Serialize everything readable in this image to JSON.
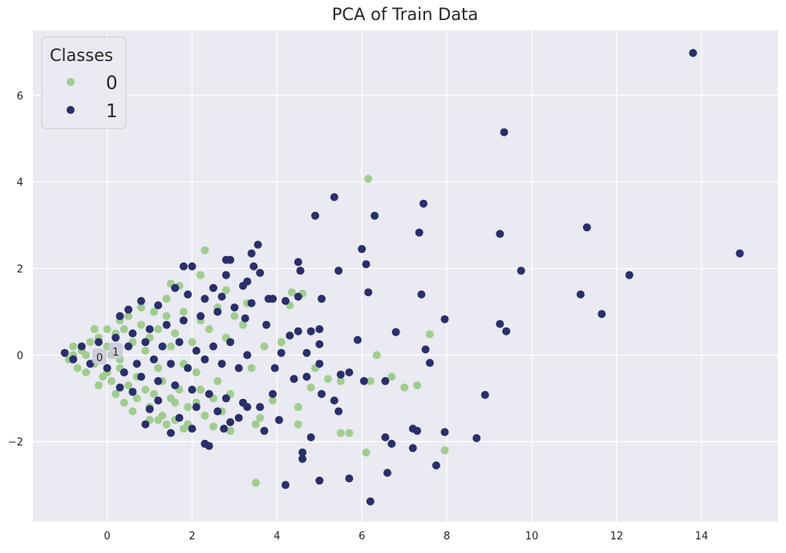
{
  "chart_data": {
    "type": "scatter",
    "title": "PCA of Train Data",
    "xlabel": "",
    "ylabel": "",
    "xlim": [
      -1.75,
      15.8
    ],
    "ylim": [
      -3.85,
      7.5
    ],
    "x_ticks": [
      0,
      2,
      4,
      6,
      8,
      10,
      12,
      14
    ],
    "x_tick_labels": [
      "0",
      "2",
      "4",
      "6",
      "8",
      "10",
      "12",
      "14"
    ],
    "y_ticks": [
      -2,
      0,
      2,
      4,
      6
    ],
    "y_tick_labels": [
      "−2",
      "0",
      "2",
      "4",
      "6"
    ],
    "grid": true,
    "background": "#eaeaf2",
    "legend": {
      "title": "Classes",
      "placement": "top-left"
    },
    "annotations": [
      {
        "text": "0",
        "x": -0.18,
        "y": -0.05
      },
      {
        "text": "1",
        "x": 0.2,
        "y": 0.08
      }
    ],
    "series": [
      {
        "name": "0",
        "color": "#a1cc8f",
        "points": [
          [
            -0.9,
            -0.1
          ],
          [
            -0.8,
            0.2
          ],
          [
            -0.7,
            -0.3
          ],
          [
            -0.6,
            0.1
          ],
          [
            -0.5,
            -0.4
          ],
          [
            -0.4,
            0.3
          ],
          [
            -0.3,
            -0.2
          ],
          [
            -0.2,
            0.4
          ],
          [
            -0.1,
            -0.5
          ],
          [
            0.0,
            0.2
          ],
          [
            0.1,
            -0.6
          ],
          [
            0.2,
            0.5
          ],
          [
            0.3,
            -0.3
          ],
          [
            0.4,
            0.6
          ],
          [
            0.5,
            -0.7
          ],
          [
            0.6,
            0.3
          ],
          [
            0.7,
            -0.5
          ],
          [
            0.8,
            0.7
          ],
          [
            0.9,
            -0.8
          ],
          [
            1.0,
            0.4
          ],
          [
            1.1,
            -0.9
          ],
          [
            1.2,
            0.6
          ],
          [
            1.3,
            -0.6
          ],
          [
            1.4,
            0.9
          ],
          [
            1.5,
            -1.0
          ],
          [
            1.6,
            0.5
          ],
          [
            1.7,
            -0.8
          ],
          [
            1.8,
            1.0
          ],
          [
            1.9,
            -1.2
          ],
          [
            2.0,
            0.3
          ],
          [
            2.1,
            -1.1
          ],
          [
            2.2,
            0.8
          ],
          [
            2.3,
            -1.4
          ],
          [
            2.4,
            0.6
          ],
          [
            2.5,
            -1.0
          ],
          [
            2.6,
            1.1
          ],
          [
            2.7,
            -1.3
          ],
          [
            2.8,
            0.4
          ],
          [
            2.9,
            -0.9
          ],
          [
            3.0,
            0.9
          ],
          [
            0.2,
            -0.9
          ],
          [
            0.4,
            -1.1
          ],
          [
            0.7,
            -1.0
          ],
          [
            1.0,
            -1.2
          ],
          [
            1.3,
            -1.4
          ],
          [
            1.6,
            -1.5
          ],
          [
            1.9,
            -1.6
          ],
          [
            1.2,
            -0.3
          ],
          [
            0.9,
            0.1
          ],
          [
            1.5,
            0.2
          ],
          [
            1.8,
            -0.2
          ],
          [
            2.1,
            -0.4
          ],
          [
            0.5,
            0.9
          ],
          [
            0.8,
            1.1
          ],
          [
            1.1,
            1.0
          ],
          [
            1.4,
            1.3
          ],
          [
            1.7,
            1.6
          ],
          [
            2.3,
            2.42
          ],
          [
            1.5,
            1.65
          ],
          [
            2.2,
            1.85
          ],
          [
            2.0,
            -1.7
          ],
          [
            1.8,
            -1.7
          ],
          [
            2.5,
            -1.65
          ],
          [
            2.9,
            -1.75
          ],
          [
            3.5,
            -1.6
          ],
          [
            3.6,
            -1.45
          ],
          [
            3.5,
            -2.95
          ],
          [
            3.9,
            -1.05
          ],
          [
            4.5,
            -1.6
          ],
          [
            4.5,
            -1.2
          ],
          [
            4.3,
            1.15
          ],
          [
            4.35,
            1.45
          ],
          [
            4.6,
            1.42
          ],
          [
            4.8,
            -0.75
          ],
          [
            4.9,
            -0.3
          ],
          [
            5.2,
            -0.55
          ],
          [
            5.5,
            -1.8
          ],
          [
            5.5,
            -0.6
          ],
          [
            5.7,
            -1.8
          ],
          [
            6.1,
            -2.25
          ],
          [
            6.2,
            -0.6
          ],
          [
            6.35,
            0.0
          ],
          [
            6.7,
            -0.5
          ],
          [
            7.0,
            -0.75
          ],
          [
            7.3,
            -0.7
          ],
          [
            7.6,
            0.48
          ],
          [
            7.95,
            -2.2
          ],
          [
            6.15,
            4.07
          ],
          [
            3.2,
            0.7
          ],
          [
            3.4,
            -0.3
          ],
          [
            3.7,
            0.2
          ],
          [
            4.1,
            0.3
          ],
          [
            3.3,
            1.2
          ],
          [
            2.8,
            1.5
          ],
          [
            2.6,
            -0.6
          ],
          [
            0.0,
            -0.4
          ],
          [
            -0.3,
            0.6
          ],
          [
            0.3,
            0.8
          ],
          [
            0.6,
            -1.3
          ],
          [
            1.0,
            -1.5
          ],
          [
            1.4,
            -1.6
          ],
          [
            1.2,
            -1.5
          ],
          [
            0.1,
            0.0
          ],
          [
            -0.5,
            0.0
          ],
          [
            -0.8,
            0.0
          ],
          [
            -0.2,
            -0.7
          ],
          [
            0.0,
            0.6
          ],
          [
            0.3,
            -0.1
          ],
          [
            1.6,
            -1.1
          ],
          [
            2.2,
            -0.8
          ]
        ]
      },
      {
        "name": "1",
        "color": "#2a2f6c",
        "points": [
          [
            -1.0,
            0.05
          ],
          [
            -0.8,
            -0.1
          ],
          [
            -0.6,
            0.2
          ],
          [
            -0.4,
            -0.2
          ],
          [
            -0.2,
            0.3
          ],
          [
            0.0,
            -0.3
          ],
          [
            0.2,
            0.4
          ],
          [
            0.4,
            -0.4
          ],
          [
            0.6,
            0.5
          ],
          [
            0.8,
            -0.5
          ],
          [
            1.0,
            0.6
          ],
          [
            1.2,
            -0.6
          ],
          [
            1.4,
            0.7
          ],
          [
            1.6,
            -0.7
          ],
          [
            1.8,
            0.8
          ],
          [
            2.0,
            -0.8
          ],
          [
            2.2,
            0.9
          ],
          [
            2.4,
            -0.9
          ],
          [
            2.6,
            1.0
          ],
          [
            2.8,
            -1.0
          ],
          [
            3.0,
            1.1
          ],
          [
            3.2,
            -1.1
          ],
          [
            3.4,
            1.2
          ],
          [
            3.6,
            -1.2
          ],
          [
            3.8,
            1.3
          ],
          [
            0.5,
            0.2
          ],
          [
            0.7,
            -0.2
          ],
          [
            0.9,
            0.3
          ],
          [
            1.1,
            -0.1
          ],
          [
            1.3,
            0.2
          ],
          [
            1.5,
            -0.2
          ],
          [
            1.7,
            0.3
          ],
          [
            1.9,
            -0.3
          ],
          [
            2.1,
            0.1
          ],
          [
            2.3,
            -0.1
          ],
          [
            2.5,
            0.2
          ],
          [
            2.7,
            -0.2
          ],
          [
            2.9,
            0.3
          ],
          [
            3.1,
            -0.3
          ],
          [
            3.3,
            0.0
          ],
          [
            2.8,
            2.2
          ],
          [
            2.9,
            2.2
          ],
          [
            3.3,
            1.7
          ],
          [
            3.4,
            2.35
          ],
          [
            3.45,
            2.05
          ],
          [
            3.55,
            2.55
          ],
          [
            3.6,
            1.9
          ],
          [
            3.2,
            1.6
          ],
          [
            2.8,
            1.85
          ],
          [
            2.5,
            1.55
          ],
          [
            2.0,
            2.05
          ],
          [
            1.8,
            2.05
          ],
          [
            3.9,
            1.3
          ],
          [
            4.2,
            1.25
          ],
          [
            4.5,
            2.15
          ],
          [
            4.55,
            1.95
          ],
          [
            4.5,
            1.35
          ],
          [
            4.9,
            3.22
          ],
          [
            5.35,
            3.65
          ],
          [
            5.45,
            1.95
          ],
          [
            5.05,
            1.3
          ],
          [
            5.0,
            0.6
          ],
          [
            4.8,
            0.55
          ],
          [
            5.0,
            0.25
          ],
          [
            5.0,
            -0.2
          ],
          [
            5.05,
            -0.9
          ],
          [
            5.5,
            -0.45
          ],
          [
            5.7,
            -0.4
          ],
          [
            5.35,
            -1.05
          ],
          [
            5.45,
            -1.3
          ],
          [
            4.8,
            -1.9
          ],
          [
            4.6,
            -2.25
          ],
          [
            4.6,
            -2.4
          ],
          [
            5.0,
            -2.9
          ],
          [
            5.7,
            -2.85
          ],
          [
            6.05,
            -0.6
          ],
          [
            5.9,
            0.35
          ],
          [
            6.0,
            2.45
          ],
          [
            6.1,
            2.1
          ],
          [
            6.15,
            1.45
          ],
          [
            6.3,
            3.22
          ],
          [
            6.8,
            0.53
          ],
          [
            6.55,
            -0.6
          ],
          [
            6.55,
            -1.9
          ],
          [
            6.6,
            -2.72
          ],
          [
            6.7,
            -2.05
          ],
          [
            7.2,
            -1.7
          ],
          [
            7.2,
            -2.15
          ],
          [
            7.3,
            -1.75
          ],
          [
            7.35,
            2.83
          ],
          [
            7.4,
            1.4
          ],
          [
            7.45,
            3.5
          ],
          [
            7.5,
            0.13
          ],
          [
            7.6,
            -0.18
          ],
          [
            7.95,
            0.83
          ],
          [
            7.95,
            -1.78
          ],
          [
            7.75,
            -2.55
          ],
          [
            8.7,
            -1.92
          ],
          [
            8.9,
            -0.92
          ],
          [
            9.25,
            0.72
          ],
          [
            9.25,
            2.8
          ],
          [
            9.35,
            5.15
          ],
          [
            9.4,
            0.55
          ],
          [
            9.75,
            1.95
          ],
          [
            11.15,
            1.4
          ],
          [
            11.3,
            2.95
          ],
          [
            11.65,
            0.95
          ],
          [
            12.3,
            1.85
          ],
          [
            13.8,
            6.98
          ],
          [
            14.9,
            2.35
          ],
          [
            4.2,
            -3.0
          ],
          [
            6.2,
            -3.38
          ],
          [
            0.9,
            -1.6
          ],
          [
            1.5,
            -1.8
          ],
          [
            1.7,
            -1.45
          ],
          [
            2.0,
            -1.7
          ],
          [
            2.3,
            -2.05
          ],
          [
            2.4,
            -2.1
          ],
          [
            2.75,
            -1.7
          ],
          [
            3.1,
            -1.45
          ],
          [
            3.7,
            -1.75
          ],
          [
            4.05,
            -1.5
          ],
          [
            3.9,
            -0.9
          ],
          [
            3.95,
            -0.3
          ],
          [
            4.5,
            0.55
          ],
          [
            4.4,
            -0.55
          ],
          [
            4.7,
            -0.5
          ],
          [
            3.75,
            0.7
          ],
          [
            3.25,
            0.85
          ],
          [
            4.1,
            0.05
          ],
          [
            4.3,
            0.45
          ],
          [
            4.7,
            0.05
          ],
          [
            2.3,
            1.3
          ],
          [
            1.9,
            1.4
          ],
          [
            1.6,
            1.55
          ],
          [
            2.7,
            1.35
          ],
          [
            0.3,
            0.9
          ],
          [
            0.5,
            1.05
          ],
          [
            0.8,
            1.25
          ],
          [
            1.2,
            1.15
          ],
          [
            1.0,
            -1.25
          ],
          [
            1.2,
            -1.05
          ],
          [
            0.6,
            -0.85
          ],
          [
            0.3,
            -0.75
          ],
          [
            2.1,
            -1.2
          ],
          [
            2.6,
            -1.3
          ],
          [
            2.9,
            -1.55
          ],
          [
            3.3,
            -1.2
          ]
        ]
      }
    ]
  }
}
